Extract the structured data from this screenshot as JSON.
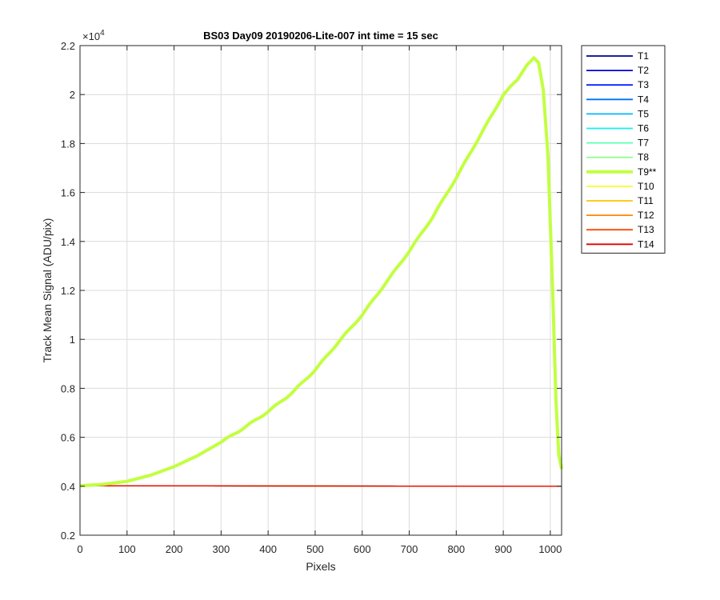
{
  "chart_data": {
    "type": "line",
    "title": "BS03 Day09 20190206-Lite-007 int time = 15 sec",
    "xlabel": "Pixels",
    "ylabel": "Track Mean Signal (ADU/pix)",
    "y_exponent_label": "×10",
    "y_exponent": "4",
    "xlim": [
      0,
      1024
    ],
    "ylim": [
      2000,
      22000
    ],
    "xticks": [
      0,
      100,
      200,
      300,
      400,
      500,
      600,
      700,
      800,
      900,
      1000
    ],
    "xtick_labels": [
      "0",
      "100",
      "200",
      "300",
      "400",
      "500",
      "600",
      "700",
      "800",
      "900",
      "1000"
    ],
    "yticks": [
      2000,
      4000,
      6000,
      8000,
      10000,
      12000,
      14000,
      16000,
      18000,
      20000,
      22000
    ],
    "ytick_labels": [
      "0.2",
      "0.4",
      "0.6",
      "0.8",
      "1",
      "1.2",
      "1.4",
      "1.6",
      "1.8",
      "2",
      "2.2"
    ],
    "grid": true,
    "legend_position": "outside-right",
    "series": [
      {
        "name": "T1",
        "color": "#00008f",
        "highlight": false,
        "x": [
          0,
          1024
        ],
        "y": [
          4020,
          4000
        ]
      },
      {
        "name": "T2",
        "color": "#0000d6",
        "highlight": false,
        "x": [
          0,
          1024
        ],
        "y": [
          4020,
          4000
        ]
      },
      {
        "name": "T3",
        "color": "#0025ff",
        "highlight": false,
        "x": [
          0,
          1024
        ],
        "y": [
          4020,
          4000
        ]
      },
      {
        "name": "T4",
        "color": "#0070ff",
        "highlight": false,
        "x": [
          0,
          1024
        ],
        "y": [
          4020,
          4000
        ]
      },
      {
        "name": "T5",
        "color": "#00b7ff",
        "highlight": false,
        "x": [
          0,
          1024
        ],
        "y": [
          4020,
          4000
        ]
      },
      {
        "name": "T6",
        "color": "#12f2ef",
        "highlight": false,
        "x": [
          0,
          1024
        ],
        "y": [
          4020,
          4000
        ]
      },
      {
        "name": "T7",
        "color": "#5effb6",
        "highlight": false,
        "x": [
          0,
          1024
        ],
        "y": [
          4020,
          4000
        ]
      },
      {
        "name": "T8",
        "color": "#91ff8f",
        "highlight": false,
        "x": [
          0,
          1024
        ],
        "y": [
          4020,
          4000
        ]
      },
      {
        "name": "T9**",
        "color": "#c2ff40",
        "highlight": true,
        "x": [
          0,
          50,
          100,
          150,
          200,
          250,
          300,
          350,
          400,
          450,
          500,
          550,
          600,
          650,
          700,
          750,
          800,
          850,
          880,
          900,
          930,
          950,
          965,
          975,
          985,
          995,
          1005,
          1012,
          1018,
          1024
        ],
        "y": [
          4020,
          4080,
          4200,
          4450,
          4800,
          5250,
          5800,
          6400,
          7050,
          7800,
          8750,
          9900,
          11000,
          12300,
          13600,
          15000,
          16600,
          18300,
          19300,
          20000,
          20600,
          21200,
          21500,
          21300,
          20200,
          17500,
          12000,
          7500,
          5300,
          4700
        ]
      },
      {
        "name": "T10",
        "color": "#f5ff2e",
        "highlight": false,
        "x": [
          0,
          1024
        ],
        "y": [
          4020,
          4000
        ]
      },
      {
        "name": "T11",
        "color": "#ffc400",
        "highlight": false,
        "x": [
          0,
          1024
        ],
        "y": [
          4020,
          4000
        ]
      },
      {
        "name": "T12",
        "color": "#ff8800",
        "highlight": false,
        "x": [
          0,
          1024
        ],
        "y": [
          4020,
          4000
        ]
      },
      {
        "name": "T13",
        "color": "#ff4a00",
        "highlight": false,
        "x": [
          0,
          1024
        ],
        "y": [
          4020,
          4000
        ]
      },
      {
        "name": "T14",
        "color": "#e60000",
        "highlight": false,
        "x": [
          0,
          1024
        ],
        "y": [
          4020,
          4000
        ]
      }
    ]
  }
}
